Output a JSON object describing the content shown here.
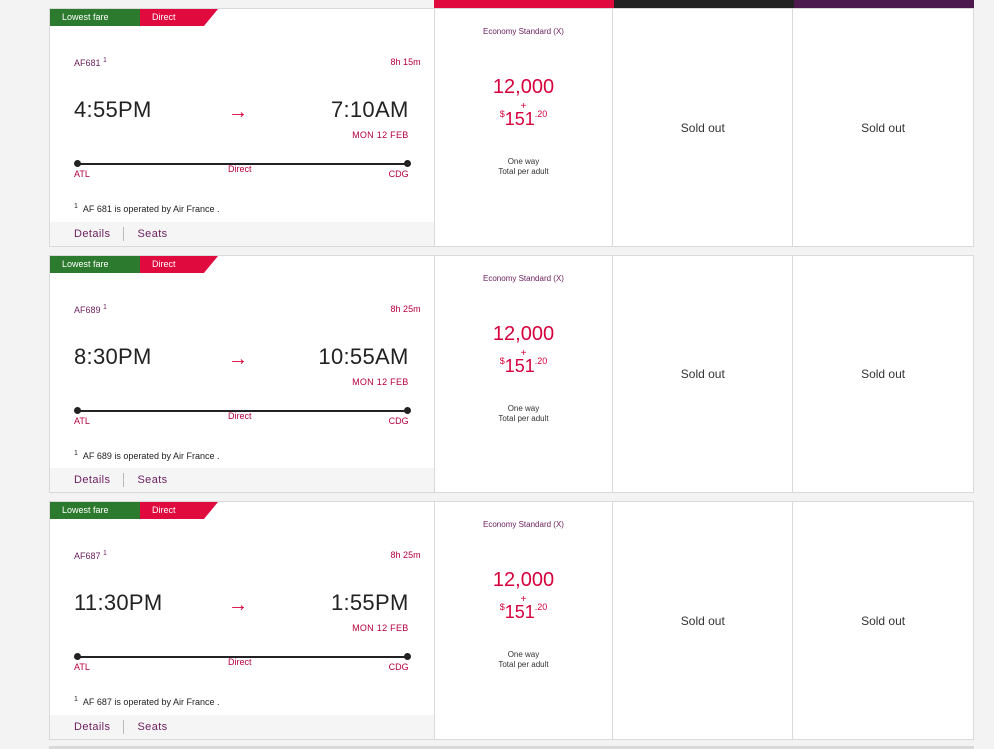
{
  "colors": {
    "column_bar_1": "#e10a3f",
    "column_bar_2": "#222222",
    "column_bar_3": "#4d1a4f"
  },
  "flights": [
    {
      "tag_lowest": "Lowest fare",
      "tag_direct": "Direct",
      "flight_number": "AF681",
      "footnote_mark": "1",
      "duration": "8h 15m",
      "depart_time": "4:55PM",
      "arrow": "→",
      "arrive_time": "7:10AM",
      "arrive_date": "MON 12 FEB",
      "route_label": "Direct",
      "from": "ATL",
      "to": "CDG",
      "operated_by": "AF 681 is operated by Air France .",
      "details_label": "Details",
      "seats_label": "Seats",
      "fare": {
        "cabin": "Economy Standard (X)",
        "points": "12,000",
        "plus": "+",
        "currency": "$",
        "dollars": "151",
        "cents": ".20",
        "one_way": "One way",
        "per_adult": "Total per adult"
      },
      "col2": "Sold out",
      "col3": "Sold out"
    },
    {
      "tag_lowest": "Lowest fare",
      "tag_direct": "Direct",
      "flight_number": "AF689",
      "footnote_mark": "1",
      "duration": "8h 25m",
      "depart_time": "8:30PM",
      "arrow": "→",
      "arrive_time": "10:55AM",
      "arrive_date": "MON 12 FEB",
      "route_label": "Direct",
      "from": "ATL",
      "to": "CDG",
      "operated_by": "AF 689 is operated by Air France .",
      "details_label": "Details",
      "seats_label": "Seats",
      "fare": {
        "cabin": "Economy Standard (X)",
        "points": "12,000",
        "plus": "+",
        "currency": "$",
        "dollars": "151",
        "cents": ".20",
        "one_way": "One way",
        "per_adult": "Total per adult"
      },
      "col2": "Sold out",
      "col3": "Sold out"
    },
    {
      "tag_lowest": "Lowest fare",
      "tag_direct": "Direct",
      "flight_number": "AF687",
      "footnote_mark": "1",
      "duration": "8h 25m",
      "depart_time": "11:30PM",
      "arrow": "→",
      "arrive_time": "1:55PM",
      "arrive_date": "MON 12 FEB",
      "route_label": "Direct",
      "from": "ATL",
      "to": "CDG",
      "operated_by": "AF 687 is operated by Air France .",
      "details_label": "Details",
      "seats_label": "Seats",
      "fare": {
        "cabin": "Economy Standard (X)",
        "points": "12,000",
        "plus": "+",
        "currency": "$",
        "dollars": "151",
        "cents": ".20",
        "one_way": "One way",
        "per_adult": "Total per adult"
      },
      "col2": "Sold out",
      "col3": "Sold out"
    }
  ]
}
